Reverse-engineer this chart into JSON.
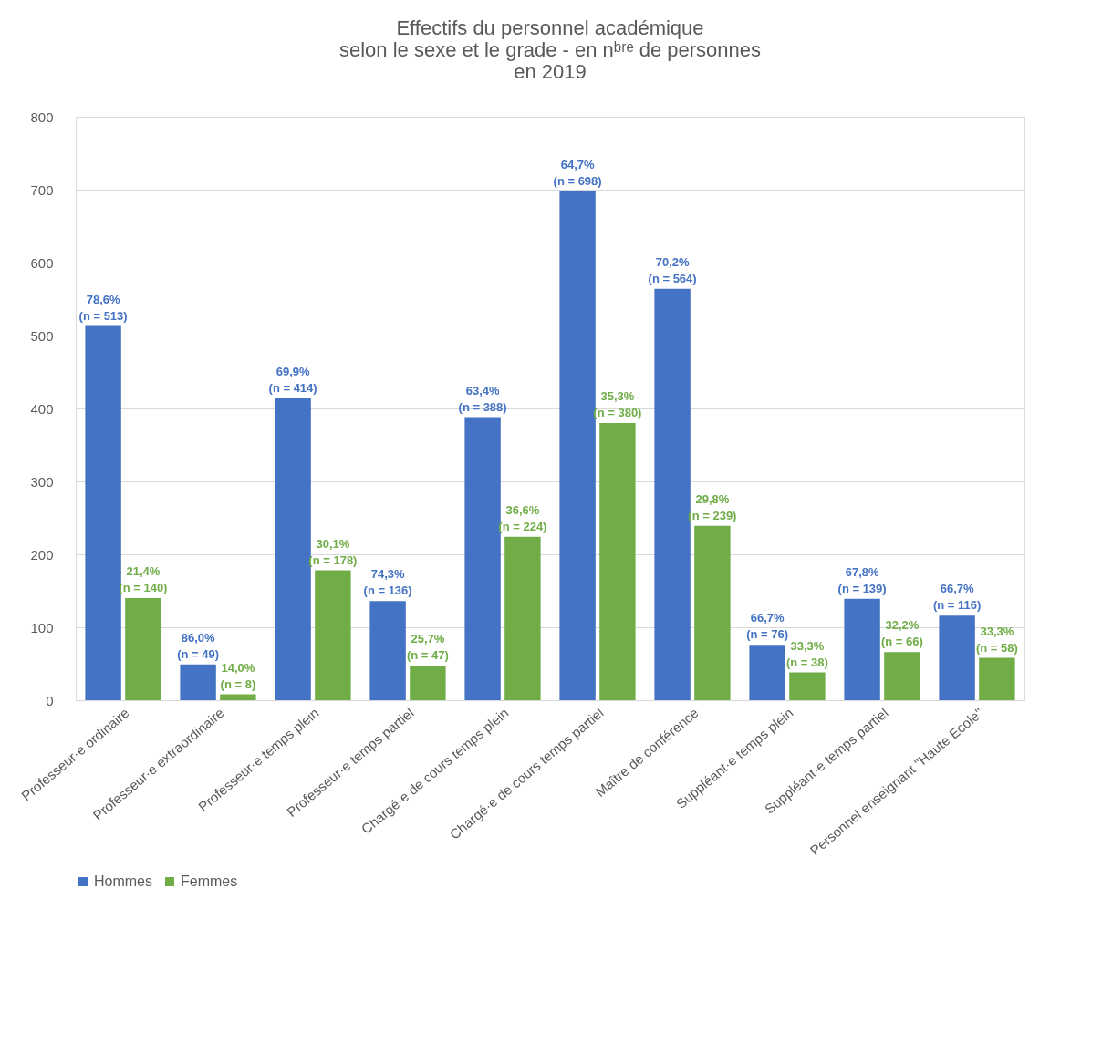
{
  "chart_data": {
    "type": "bar",
    "title": [
      "Effectifs du personnel académique",
      "selon le sexe et le grade - en nᵇʳᵉ de personnes",
      "en 2019"
    ],
    "categories": [
      "Professeur·e ordinaire",
      "Professeur·e extraordinaire",
      "Professeur·e temps plein",
      "Professeur·e temps partiel",
      "Chargé·e de cours temps plein",
      "Chargé·e de cours temps partiel",
      "Maître de conférence",
      "Suppléant·e temps plein",
      "Suppléant·e temps partiel",
      "Personnel enseignant \"Haute Ecole\""
    ],
    "series": [
      {
        "name": "Hommes",
        "color": "#4472c4",
        "values": [
          513,
          49,
          414,
          136,
          388,
          698,
          564,
          76,
          139,
          116
        ],
        "value_labels": [
          "78,6%\n(n = 513)",
          "86,0%\n(n = 49)",
          "69,9%\n(n = 414)",
          "74,3%\n(n = 136)",
          "63,4%\n(n = 388)",
          "64,7%\n(n = 698)",
          "70,2%\n(n = 564)",
          "66,7%\n(n = 76)",
          "67,8%\n(n = 139)",
          "66,7%\n(n = 116)"
        ]
      },
      {
        "name": "Femmes",
        "color": "#70ad47",
        "values": [
          140,
          8,
          178,
          47,
          224,
          380,
          239,
          38,
          66,
          58
        ],
        "value_labels": [
          "21,4%\n(n = 140)",
          "14,0%\n(n = 8)",
          "30,1%\n(n = 178)",
          "25,7%\n(n = 47)",
          "36,6%\n(n = 224)",
          "35,3%\n(n = 380)",
          "29,8%\n(n = 239)",
          "33,3%\n(n = 38)",
          "32,2%\n(n = 66)",
          "33,3%\n(n = 58)"
        ]
      }
    ],
    "ylim": [
      0,
      800
    ],
    "yticks": [
      0,
      100,
      200,
      300,
      400,
      500,
      600,
      700,
      800
    ],
    "grid": "y",
    "legend": "bottom"
  }
}
